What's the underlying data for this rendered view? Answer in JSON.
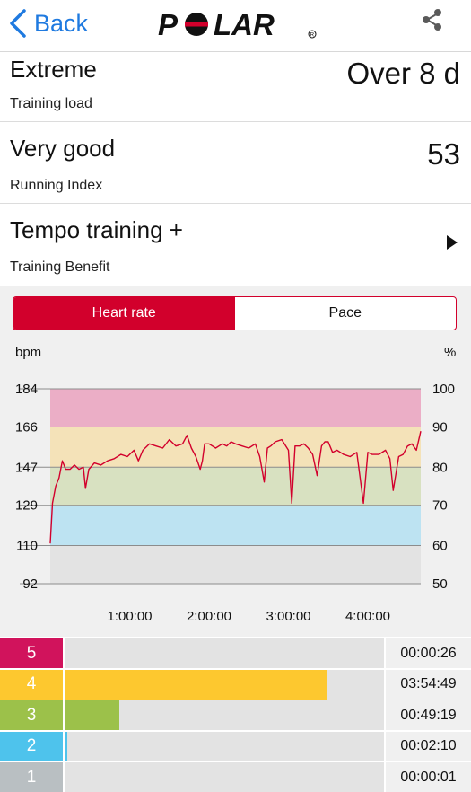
{
  "header": {
    "back_label": "Back",
    "logo_text": "POLAR"
  },
  "summary": [
    {
      "main": "Extreme",
      "sub": "Training load",
      "value": "Over 8 d"
    },
    {
      "main": "Very good",
      "sub": "Running Index",
      "value": "53"
    },
    {
      "main": "Tempo training +",
      "sub": "Training Benefit"
    }
  ],
  "tabs": {
    "active": "Heart rate",
    "inactive": "Pace"
  },
  "chart_data": {
    "type": "line",
    "left_unit": "bpm",
    "right_unit": "%",
    "y_ticks_left": [
      "184",
      "166",
      "147",
      "129",
      "110",
      "92"
    ],
    "y_ticks_right": [
      "100",
      "90",
      "80",
      "70",
      "60",
      "50"
    ],
    "ylim": [
      92,
      184
    ],
    "xlim_seconds": [
      0,
      16800
    ],
    "x_ticks": [
      {
        "label": "1:00:00",
        "t": 3600
      },
      {
        "label": "2:00:00",
        "t": 7200
      },
      {
        "label": "3:00:00",
        "t": 10800
      },
      {
        "label": "4:00:00",
        "t": 14400
      }
    ],
    "zone_bands": [
      {
        "from": 166,
        "to": 184,
        "color": "#ebaec6"
      },
      {
        "from": 147,
        "to": 166,
        "color": "#f4e2b8"
      },
      {
        "from": 129,
        "to": 147,
        "color": "#d8e1c1"
      },
      {
        "from": 110,
        "to": 129,
        "color": "#bde3f2"
      },
      {
        "from": 92,
        "to": 110,
        "color": "#e3e3e3"
      }
    ],
    "series": [
      {
        "color": "#d2002c",
        "x": [
          0,
          100,
          250,
          400,
          550,
          700,
          900,
          1100,
          1300,
          1500,
          1600,
          1750,
          2000,
          2300,
          2600,
          2900,
          3200,
          3500,
          3800,
          4000,
          4200,
          4500,
          4800,
          5100,
          5400,
          5700,
          6000,
          6200,
          6400,
          6600,
          6800,
          6900,
          7000,
          7200,
          7500,
          7800,
          8000,
          8200,
          8400,
          8700,
          9000,
          9300,
          9500,
          9700,
          9850,
          10000,
          10200,
          10500,
          10800,
          10950,
          11100,
          11300,
          11500,
          11700,
          11900,
          12100,
          12300,
          12450,
          12600,
          12800,
          13000,
          13300,
          13600,
          13900,
          14200,
          14400,
          14600,
          14900,
          15200,
          15400,
          15550,
          15800,
          16000,
          16200,
          16400,
          16600,
          16800
        ],
        "y": [
          111,
          130,
          138,
          142,
          150,
          146,
          146,
          148,
          146,
          147,
          137,
          146,
          149,
          148,
          150,
          151,
          153,
          152,
          155,
          150,
          155,
          158,
          157,
          156,
          160,
          157,
          158,
          162,
          156,
          152,
          146,
          150,
          158,
          158,
          156,
          158,
          157,
          159,
          158,
          157,
          156,
          158,
          152,
          140,
          156,
          157,
          159,
          160,
          155,
          130,
          157,
          157,
          158,
          156,
          153,
          143,
          157,
          159,
          159,
          154,
          155,
          153,
          152,
          154,
          130,
          154,
          153,
          153,
          155,
          151,
          136,
          152,
          153,
          157,
          158,
          155,
          164
        ]
      }
    ]
  },
  "zones": [
    {
      "zone": "5",
      "color": "#d1135c",
      "fraction": 0.0,
      "time": "00:00:26"
    },
    {
      "zone": "4",
      "color": "#fdc82f",
      "fraction": 0.82,
      "time": "03:54:49"
    },
    {
      "zone": "3",
      "color": "#9cc14a",
      "fraction": 0.172,
      "time": "00:49:19"
    },
    {
      "zone": "2",
      "color": "#4ec3ec",
      "fraction": 0.008,
      "time": "00:02:10"
    },
    {
      "zone": "1",
      "color": "#b9bfc2",
      "fraction": 0.0,
      "time": "00:00:01"
    }
  ]
}
